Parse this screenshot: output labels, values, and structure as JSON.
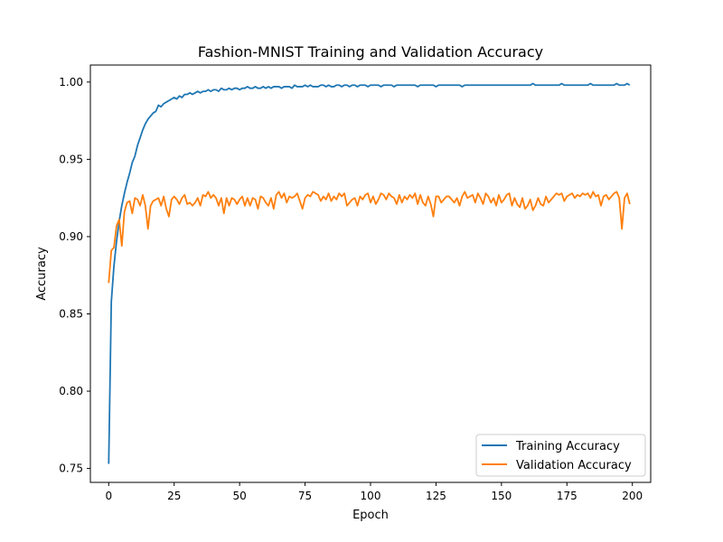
{
  "chart_data": {
    "type": "line",
    "title": "Fashion-MNIST Training and Validation Accuracy",
    "xlabel": "Epoch",
    "ylabel": "Accuracy",
    "xlim": [
      -7,
      207
    ],
    "ylim": [
      0.741,
      1.011
    ],
    "xticks": [
      0,
      25,
      50,
      75,
      100,
      125,
      150,
      175,
      200
    ],
    "yticks": [
      0.75,
      0.8,
      0.85,
      0.9,
      0.95,
      1.0
    ],
    "ytick_labels": [
      "0.75",
      "0.80",
      "0.85",
      "0.90",
      "0.95",
      "1.00"
    ],
    "legend_position": "lower-right",
    "series": [
      {
        "name": "Training Accuracy",
        "color": "#1f77b4",
        "x_start": 0,
        "values": [
          0.753,
          0.858,
          0.881,
          0.897,
          0.91,
          0.92,
          0.928,
          0.935,
          0.941,
          0.948,
          0.952,
          0.959,
          0.964,
          0.969,
          0.973,
          0.976,
          0.978,
          0.98,
          0.981,
          0.985,
          0.984,
          0.986,
          0.987,
          0.988,
          0.989,
          0.99,
          0.989,
          0.991,
          0.99,
          0.992,
          0.992,
          0.993,
          0.992,
          0.993,
          0.994,
          0.993,
          0.994,
          0.994,
          0.995,
          0.994,
          0.995,
          0.995,
          0.994,
          0.996,
          0.995,
          0.995,
          0.996,
          0.995,
          0.996,
          0.996,
          0.995,
          0.996,
          0.996,
          0.997,
          0.996,
          0.996,
          0.997,
          0.996,
          0.996,
          0.997,
          0.996,
          0.997,
          0.996,
          0.997,
          0.997,
          0.997,
          0.996,
          0.997,
          0.997,
          0.997,
          0.996,
          0.998,
          0.997,
          0.997,
          0.997,
          0.998,
          0.997,
          0.998,
          0.997,
          0.997,
          0.997,
          0.998,
          0.998,
          0.997,
          0.998,
          0.997,
          0.997,
          0.998,
          0.998,
          0.997,
          0.998,
          0.998,
          0.997,
          0.998,
          0.998,
          0.997,
          0.998,
          0.998,
          0.998,
          0.997,
          0.998,
          0.998,
          0.998,
          0.998,
          0.997,
          0.998,
          0.998,
          0.998,
          0.998,
          0.997,
          0.998,
          0.998,
          0.998,
          0.998,
          0.998,
          0.998,
          0.998,
          0.998,
          0.997,
          0.998,
          0.998,
          0.998,
          0.998,
          0.998,
          0.998,
          0.997,
          0.998,
          0.998,
          0.998,
          0.998,
          0.998,
          0.998,
          0.998,
          0.998,
          0.998,
          0.997,
          0.998,
          0.998,
          0.998,
          0.998,
          0.998,
          0.998,
          0.998,
          0.998,
          0.998,
          0.998,
          0.998,
          0.998,
          0.998,
          0.998,
          0.998,
          0.998,
          0.998,
          0.998,
          0.998,
          0.998,
          0.998,
          0.998,
          0.998,
          0.998,
          0.998,
          0.998,
          0.999,
          0.998,
          0.998,
          0.998,
          0.998,
          0.998,
          0.998,
          0.998,
          0.998,
          0.998,
          0.998,
          0.999,
          0.998,
          0.998,
          0.998,
          0.998,
          0.998,
          0.998,
          0.998,
          0.998,
          0.998,
          0.998,
          0.999,
          0.998,
          0.998,
          0.998,
          0.998,
          0.998,
          0.998,
          0.998,
          0.998,
          0.998,
          0.999,
          0.998,
          0.998,
          0.998,
          0.999,
          0.998
        ]
      },
      {
        "name": "Validation Accuracy",
        "color": "#ff7f0e",
        "x_start": 0,
        "values": [
          0.87,
          0.891,
          0.893,
          0.907,
          0.911,
          0.894,
          0.916,
          0.922,
          0.923,
          0.915,
          0.925,
          0.924,
          0.92,
          0.927,
          0.92,
          0.905,
          0.92,
          0.923,
          0.924,
          0.925,
          0.92,
          0.926,
          0.918,
          0.913,
          0.924,
          0.926,
          0.924,
          0.921,
          0.925,
          0.927,
          0.921,
          0.922,
          0.92,
          0.922,
          0.925,
          0.92,
          0.927,
          0.926,
          0.929,
          0.925,
          0.927,
          0.925,
          0.92,
          0.925,
          0.915,
          0.925,
          0.92,
          0.925,
          0.924,
          0.921,
          0.924,
          0.926,
          0.92,
          0.925,
          0.92,
          0.925,
          0.924,
          0.918,
          0.926,
          0.925,
          0.922,
          0.92,
          0.925,
          0.918,
          0.927,
          0.929,
          0.925,
          0.928,
          0.922,
          0.926,
          0.925,
          0.926,
          0.928,
          0.923,
          0.918,
          0.925,
          0.927,
          0.926,
          0.929,
          0.928,
          0.927,
          0.923,
          0.926,
          0.924,
          0.928,
          0.923,
          0.926,
          0.924,
          0.928,
          0.926,
          0.928,
          0.92,
          0.922,
          0.924,
          0.925,
          0.92,
          0.926,
          0.924,
          0.927,
          0.928,
          0.922,
          0.926,
          0.921,
          0.924,
          0.928,
          0.927,
          0.924,
          0.928,
          0.926,
          0.925,
          0.921,
          0.927,
          0.922,
          0.926,
          0.924,
          0.927,
          0.925,
          0.928,
          0.921,
          0.927,
          0.922,
          0.92,
          0.926,
          0.921,
          0.913,
          0.926,
          0.926,
          0.922,
          0.924,
          0.926,
          0.926,
          0.924,
          0.922,
          0.925,
          0.92,
          0.926,
          0.929,
          0.925,
          0.926,
          0.927,
          0.922,
          0.928,
          0.925,
          0.921,
          0.928,
          0.926,
          0.922,
          0.925,
          0.92,
          0.927,
          0.922,
          0.924,
          0.927,
          0.928,
          0.92,
          0.925,
          0.921,
          0.919,
          0.925,
          0.918,
          0.92,
          0.924,
          0.917,
          0.92,
          0.925,
          0.921,
          0.92,
          0.926,
          0.922,
          0.924,
          0.926,
          0.928,
          0.927,
          0.928,
          0.923,
          0.926,
          0.927,
          0.928,
          0.925,
          0.927,
          0.926,
          0.928,
          0.927,
          0.928,
          0.925,
          0.929,
          0.926,
          0.927,
          0.92,
          0.926,
          0.927,
          0.924,
          0.926,
          0.928,
          0.929,
          0.925,
          0.905,
          0.925,
          0.928,
          0.921
        ]
      }
    ]
  }
}
